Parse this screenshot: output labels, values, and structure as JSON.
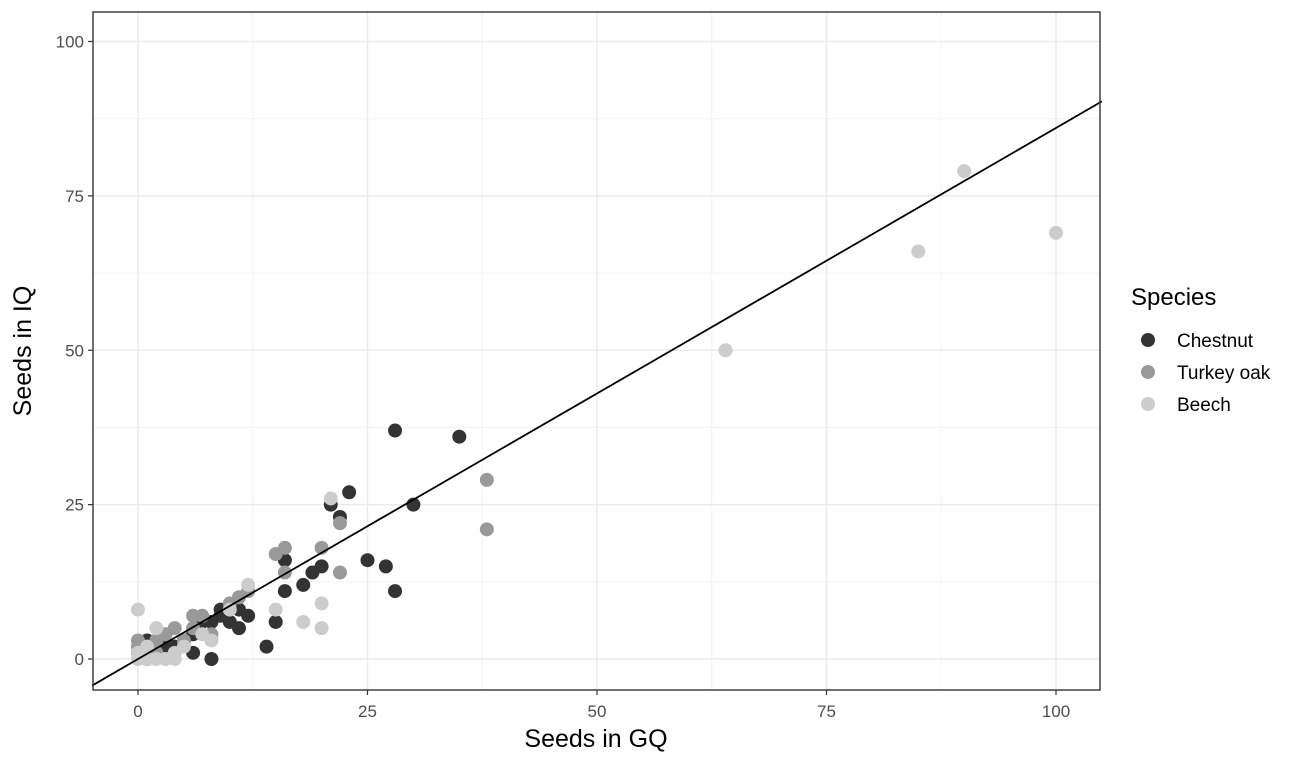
{
  "chart_data": {
    "type": "scatter",
    "xlabel": "Seeds in GQ",
    "ylabel": "Seeds in IQ",
    "xlim": [
      -5,
      105
    ],
    "ylim": [
      -5,
      105
    ],
    "x_ticks": [
      "0",
      "25",
      "50",
      "75",
      "100"
    ],
    "y_ticks": [
      "0",
      "25",
      "50",
      "75",
      "100"
    ],
    "grid": true,
    "legend": {
      "title": "Species",
      "position": "right",
      "entries": [
        "Chestnut",
        "Turkey oak",
        "Beech"
      ]
    },
    "reference_line": {
      "intercept": 0,
      "slope": 0.86
    },
    "series": [
      {
        "name": "Chestnut",
        "color": "#333333",
        "points": [
          [
            28,
            37
          ],
          [
            35,
            36
          ],
          [
            23,
            27
          ],
          [
            30,
            25
          ],
          [
            21,
            25
          ],
          [
            22,
            23
          ],
          [
            25,
            16
          ],
          [
            27,
            15
          ],
          [
            28,
            11
          ],
          [
            20,
            15
          ],
          [
            19,
            14
          ],
          [
            18,
            12
          ],
          [
            16,
            16
          ],
          [
            16,
            11
          ],
          [
            15,
            6
          ],
          [
            14,
            2
          ],
          [
            12,
            7
          ],
          [
            11,
            8
          ],
          [
            11,
            5
          ],
          [
            10,
            6
          ],
          [
            9,
            7
          ],
          [
            9,
            8
          ],
          [
            8,
            6
          ],
          [
            8,
            0
          ],
          [
            7,
            6
          ],
          [
            6,
            4
          ],
          [
            6,
            1
          ],
          [
            5,
            3
          ],
          [
            4,
            2
          ],
          [
            3,
            2
          ],
          [
            2,
            1
          ],
          [
            1,
            0
          ],
          [
            1,
            3
          ],
          [
            0,
            1
          ]
        ]
      },
      {
        "name": "Turkey oak",
        "color": "#999999",
        "points": [
          [
            38,
            29
          ],
          [
            38,
            21
          ],
          [
            22,
            22
          ],
          [
            22,
            14
          ],
          [
            20,
            18
          ],
          [
            16,
            18
          ],
          [
            15,
            17
          ],
          [
            16,
            14
          ],
          [
            12,
            11
          ],
          [
            11,
            10
          ],
          [
            10,
            9
          ],
          [
            8,
            4
          ],
          [
            7,
            7
          ],
          [
            6,
            7
          ],
          [
            6,
            5
          ],
          [
            5,
            3
          ],
          [
            4,
            5
          ],
          [
            3,
            4
          ],
          [
            2,
            3
          ],
          [
            2,
            1
          ],
          [
            1,
            2
          ],
          [
            1,
            1
          ],
          [
            0,
            3
          ],
          [
            0,
            2
          ]
        ]
      },
      {
        "name": "Beech",
        "color": "#cccccc",
        "points": [
          [
            90,
            79
          ],
          [
            100,
            69
          ],
          [
            85,
            66
          ],
          [
            64,
            50
          ],
          [
            21,
            26
          ],
          [
            20,
            9
          ],
          [
            20,
            5
          ],
          [
            18,
            6
          ],
          [
            15,
            8
          ],
          [
            12,
            12
          ],
          [
            10,
            8
          ],
          [
            8,
            3
          ],
          [
            7,
            4
          ],
          [
            5,
            2
          ],
          [
            4,
            1
          ],
          [
            4,
            0
          ],
          [
            3,
            0
          ],
          [
            2,
            5
          ],
          [
            2,
            0
          ],
          [
            1,
            0
          ],
          [
            1,
            2
          ],
          [
            0,
            8
          ],
          [
            0,
            0
          ],
          [
            0,
            1
          ]
        ]
      }
    ]
  }
}
